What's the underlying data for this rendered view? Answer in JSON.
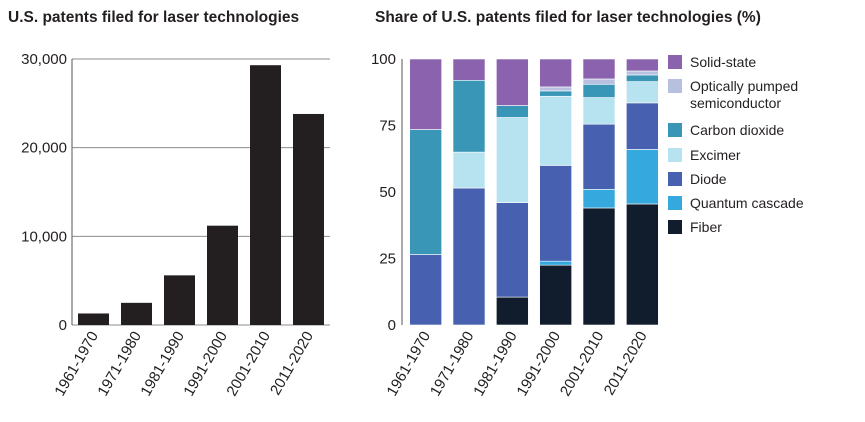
{
  "chart_data": [
    {
      "type": "bar",
      "title": "U.S. patents filed for laser technologies",
      "categories": [
        "1961-1970",
        "1971-1980",
        "1981-1990",
        "1991-2000",
        "2001-2010",
        "2011-2020"
      ],
      "values": [
        1300,
        2500,
        5600,
        11200,
        29300,
        23800
      ],
      "ylim": [
        0,
        30000
      ],
      "yticks": [
        0,
        10000,
        20000,
        30000
      ],
      "ytick_labels": [
        "0",
        "10,000",
        "20,000",
        "30,000"
      ],
      "grid": true,
      "bar_color": "#231f20"
    },
    {
      "type": "bar",
      "stacked": true,
      "title": "Share of U.S. patents filed for laser technologies (%)",
      "categories": [
        "1961-1970",
        "1971-1980",
        "1981-1990",
        "1991-2000",
        "2001-2010",
        "2011-2020"
      ],
      "ylim": [
        0,
        100
      ],
      "yticks": [
        0,
        25,
        50,
        75,
        100
      ],
      "ytick_labels": [
        "0",
        "25",
        "50",
        "75",
        "100"
      ],
      "series": [
        {
          "name": "Fiber",
          "color": "#111c2c",
          "values": [
            0,
            0,
            10.5,
            22.5,
            44,
            45.5
          ]
        },
        {
          "name": "Quantum cascade",
          "color": "#35a8de",
          "values": [
            0,
            0,
            0,
            1.5,
            7,
            20.5
          ]
        },
        {
          "name": "Diode",
          "color": "#4860b0",
          "values": [
            26.5,
            51.5,
            35.5,
            36,
            24.5,
            17.5
          ]
        },
        {
          "name": "Excimer",
          "color": "#b6e3ef",
          "values": [
            0,
            13.5,
            32,
            26,
            10,
            8
          ]
        },
        {
          "name": "Carbon dioxide",
          "color": "#3996b6",
          "values": [
            47,
            27,
            4.5,
            2,
            5,
            2.5
          ]
        },
        {
          "name": "Optically pumped\nsemiconductor",
          "color": "#b8c0e0",
          "values": [
            0,
            0,
            0,
            1.5,
            2,
            1.5
          ]
        },
        {
          "name": "Solid-state",
          "color": "#8a62ad",
          "values": [
            26.5,
            8,
            17.5,
            10.5,
            7.5,
            4.5
          ]
        }
      ],
      "legend": [
        {
          "name": "Solid-state",
          "color": "#8a62ad"
        },
        {
          "name": "Optically pumped\nsemiconductor",
          "color": "#b8c0e0"
        },
        {
          "name": "Carbon dioxide",
          "color": "#3996b6"
        },
        {
          "name": "Excimer",
          "color": "#b6e3ef"
        },
        {
          "name": "Diode",
          "color": "#4860b0"
        },
        {
          "name": "Quantum cascade",
          "color": "#35a8de"
        },
        {
          "name": "Fiber",
          "color": "#111c2c"
        }
      ],
      "legend_position": "right"
    }
  ]
}
